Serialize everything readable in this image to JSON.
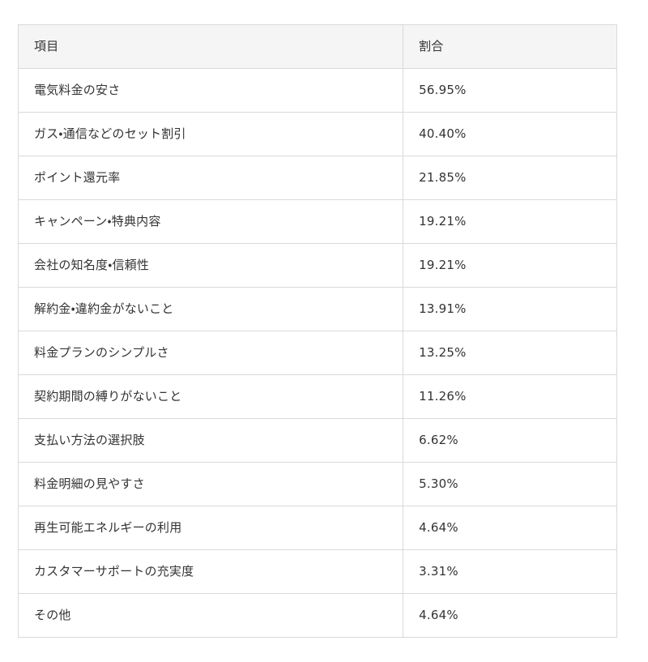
{
  "table": {
    "columns": [
      {
        "label": "項目"
      },
      {
        "label": "割合"
      }
    ],
    "rows": [
      {
        "item": "電気料金の安さ",
        "value": "56.95%"
      },
      {
        "item": "ガス・通信などのセット割引",
        "value": "40.40%"
      },
      {
        "item": "ポイント還元率",
        "value": "21.85%"
      },
      {
        "item": "キャンペーン・特典内容",
        "value": "19.21%"
      },
      {
        "item": "会社の知名度・信頼性",
        "value": "19.21%"
      },
      {
        "item": "解約金・違約金がないこと",
        "value": "13.91%"
      },
      {
        "item": "料金プランのシンプルさ",
        "value": "13.25%"
      },
      {
        "item": "契約期間の縛りがないこと",
        "value": "11.26%"
      },
      {
        "item": "支払い方法の選択肢",
        "value": "6.62%"
      },
      {
        "item": "料金明細の見やすさ",
        "value": "5.30%"
      },
      {
        "item": "再生可能エネルギーの利用",
        "value": "4.64%"
      },
      {
        "item": "カスタマーサポートの充実度",
        "value": "3.31%"
      },
      {
        "item": "その他",
        "value": "4.64%"
      }
    ],
    "colors": {
      "header_bg": "#f5f5f5",
      "border": "#d9d9d9",
      "text": "#333333",
      "page_bg": "#ffffff"
    }
  }
}
